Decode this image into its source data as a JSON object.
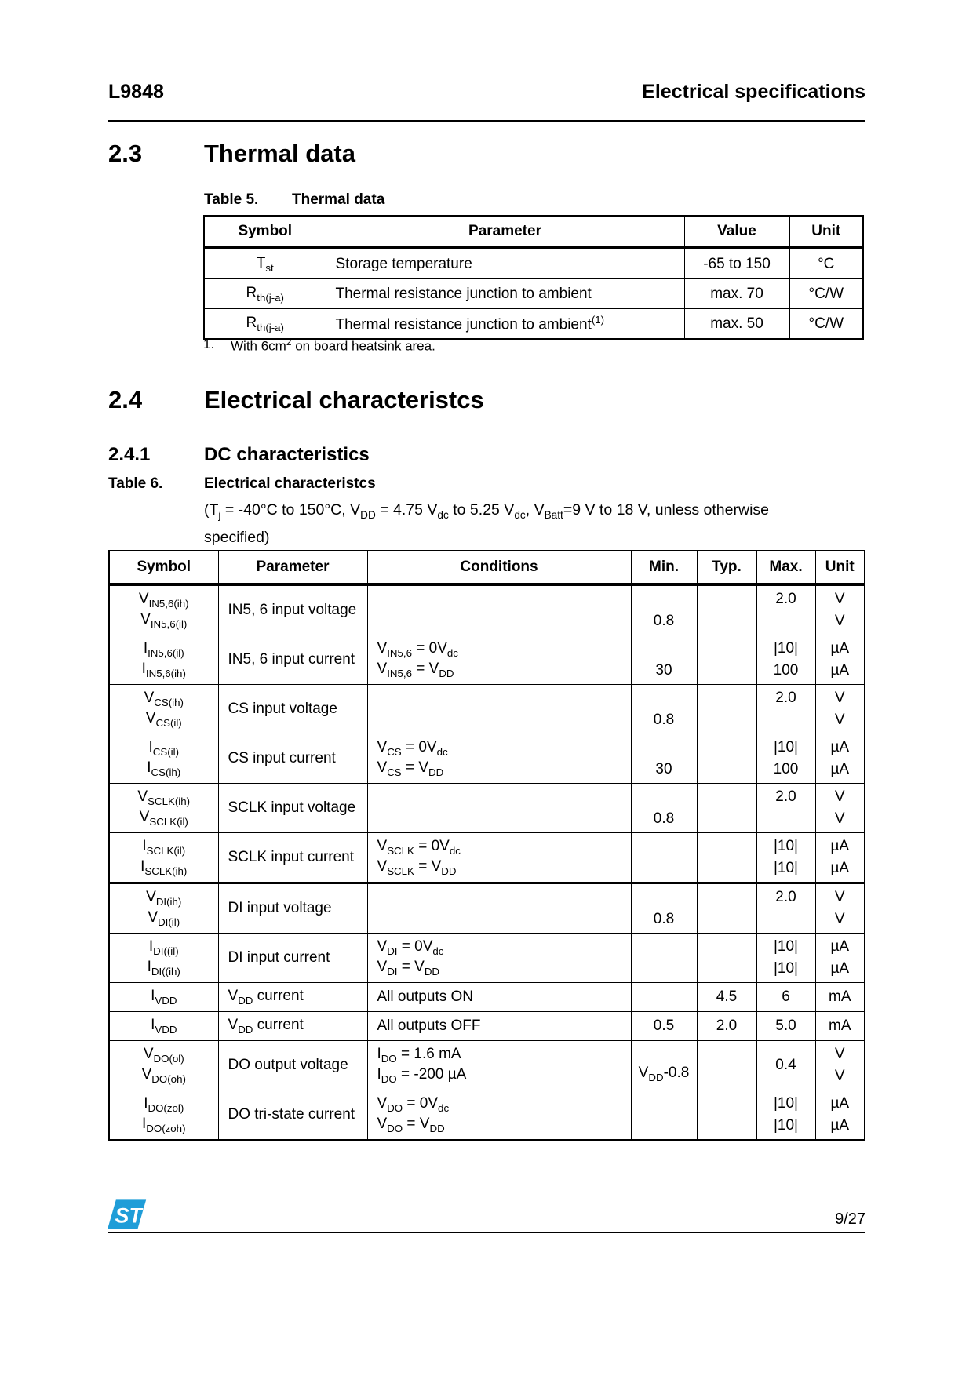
{
  "header": {
    "left": "L9848",
    "right": "Electrical specifications"
  },
  "sections": {
    "s23": {
      "number": "2.3",
      "title": "Thermal data"
    },
    "s24": {
      "number": "2.4",
      "title": "Electrical characteristcs"
    },
    "s241": {
      "number": "2.4.1",
      "title": "DC characteristics"
    }
  },
  "table5": {
    "caption_label": "Table 5.",
    "caption_title": "Thermal data",
    "headers": [
      "Symbol",
      "Parameter",
      "Value",
      "Unit"
    ],
    "rows": [
      {
        "symbol": "T~st~",
        "parameter": "Storage temperature",
        "value": "-65 to 150",
        "unit": "°C"
      },
      {
        "symbol": "R~th(j-a)~",
        "parameter": "Thermal resistance junction to ambient",
        "value": "max. 70",
        "unit": "°C/W"
      },
      {
        "symbol": "R~th(j-a)~",
        "parameter": "Thermal resistance junction to ambient^(1)^",
        "value": "max. 50",
        "unit": "°C/W"
      }
    ],
    "footnote_number": "1.",
    "footnote_text": "With 6cm^2^ on board heatsink area."
  },
  "table6": {
    "caption_label": "Table 6.",
    "caption_title": "Electrical characteristcs",
    "caption_note": "(T~j~ = -40°C to 150°C, V~DD~ = 4.75 V~dc~ to 5.25 V~dc~, V~Batt~=9 V to 18 V, unless otherwise specified)",
    "headers": [
      "Symbol",
      "Parameter",
      "Conditions",
      "Min.",
      "Typ.",
      "Max.",
      "Unit"
    ],
    "rows": [
      {
        "symbol": [
          "V~IN5,6(ih)~",
          "V~IN5,6(il)~"
        ],
        "parameter": "IN5, 6 input voltage",
        "conditions": [],
        "min": [
          "",
          "0.8"
        ],
        "typ": [],
        "max": [
          "2.0",
          ""
        ],
        "unit": [
          "V",
          "V"
        ],
        "thick_bottom": false
      },
      {
        "symbol": [
          "I~IN5,6(il)~",
          "I~IN5,6(ih)~"
        ],
        "parameter": "IN5, 6 input current",
        "conditions": [
          "V~IN5,6~ = 0V~dc~",
          "V~IN5,6~ = V~DD~"
        ],
        "min": [
          "",
          "30"
        ],
        "typ": [],
        "max": [
          "|10|",
          "100"
        ],
        "unit": [
          "µA",
          "µA"
        ],
        "thick_bottom": false
      },
      {
        "symbol": [
          "V~CS(ih)~",
          "V~CS(il)~"
        ],
        "parameter": "CS input voltage",
        "conditions": [],
        "min": [
          "",
          "0.8"
        ],
        "typ": [],
        "max": [
          "2.0",
          ""
        ],
        "unit": [
          "V",
          "V"
        ],
        "thick_bottom": false
      },
      {
        "symbol": [
          "I~CS(il)~",
          "I~CS(ih)~"
        ],
        "parameter": "CS input current",
        "conditions": [
          "V~CS~ = 0V~dc~",
          "V~CS~ = V~DD~"
        ],
        "min": [
          "",
          "30"
        ],
        "typ": [],
        "max": [
          "|10|",
          "100"
        ],
        "unit": [
          "µA",
          "µA"
        ],
        "thick_bottom": false
      },
      {
        "symbol": [
          "V~SCLK(ih)~",
          "V~SCLK(il)~"
        ],
        "parameter": "SCLK input voltage",
        "conditions": [],
        "min": [
          "",
          "0.8"
        ],
        "typ": [],
        "max": [
          "2.0",
          ""
        ],
        "unit": [
          "V",
          "V"
        ],
        "thick_bottom": false
      },
      {
        "symbol": [
          "I~SCLK(il)~",
          "I~SCLK(ih)~"
        ],
        "parameter": "SCLK input current",
        "conditions": [
          "V~SCLK~ = 0V~dc~",
          "V~SCLK~ = V~DD~"
        ],
        "min": [],
        "typ": [],
        "max": [
          "|10|",
          "|10|"
        ],
        "unit": [
          "µA",
          "µA"
        ],
        "thick_bottom": true
      },
      {
        "symbol": [
          "V~DI(ih)~",
          "V~DI(il)~"
        ],
        "parameter": "DI input voltage",
        "conditions": [],
        "min": [
          "",
          "0.8"
        ],
        "typ": [],
        "max": [
          "2.0",
          ""
        ],
        "unit": [
          "V",
          "V"
        ],
        "thick_bottom": false
      },
      {
        "symbol": [
          "I~DI((il)~",
          "I~DI((ih)~"
        ],
        "parameter": "DI input current",
        "conditions": [
          "V~DI~ = 0V~dc~",
          "V~DI~ = V~DD~"
        ],
        "min": [],
        "typ": [],
        "max": [
          "|10|",
          "|10|"
        ],
        "unit": [
          "µA",
          "µA"
        ],
        "thick_bottom": false
      },
      {
        "symbol": [
          "I~VDD~"
        ],
        "parameter": "V~DD~ current",
        "conditions": [
          "All outputs ON"
        ],
        "min": [],
        "typ": [
          "4.5"
        ],
        "max": [
          "6"
        ],
        "unit": [
          "mA"
        ],
        "thick_bottom": false
      },
      {
        "symbol": [
          "I~VDD~"
        ],
        "parameter": "V~DD~ current",
        "conditions": [
          "All outputs OFF"
        ],
        "min": [
          "0.5"
        ],
        "typ": [
          "2.0"
        ],
        "max": [
          "5.0"
        ],
        "unit": [
          "mA"
        ],
        "thick_bottom": false
      },
      {
        "symbol": [
          "V~DO(ol)~",
          "V~DO(oh)~"
        ],
        "parameter": "DO output voltage",
        "conditions": [
          "I~DO~ = 1.6 mA",
          "I~DO~ = -200 µA"
        ],
        "min": [
          "",
          "V~DD~-0.8"
        ],
        "typ": [],
        "max": [
          "0.4"
        ],
        "unit": [
          "V",
          "V"
        ],
        "thick_bottom": false
      },
      {
        "symbol": [
          "I~DO(zol)~",
          "I~DO(zoh)~"
        ],
        "parameter": "DO tri-state current",
        "conditions": [
          "V~DO~ = 0V~dc~",
          "V~DO~ = V~DD~"
        ],
        "min": [],
        "typ": [],
        "max": [
          "|10|",
          "|10|"
        ],
        "unit": [
          "µA",
          "µA"
        ],
        "thick_bottom": false
      }
    ]
  },
  "footer": {
    "page_number": "9/27",
    "logo_text": "ST",
    "logo_color": "#1f9dd8"
  }
}
